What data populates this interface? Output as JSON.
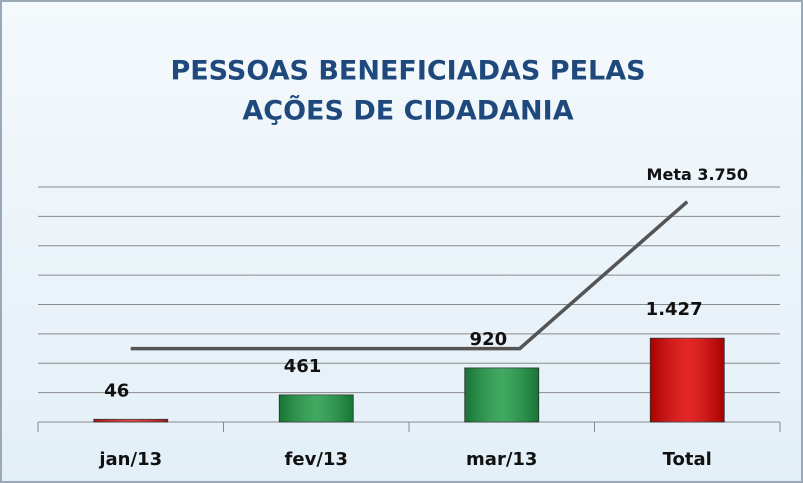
{
  "chart_data": {
    "type": "bar",
    "title": [
      "PESSOAS BENEFICIADAS PELAS",
      "AÇÕES DE CIDADANIA"
    ],
    "categories": [
      "jan/13",
      "fev/13",
      "mar/13",
      "Total"
    ],
    "values": [
      46,
      461,
      920,
      1427
    ],
    "value_labels": [
      "46",
      "461",
      "920",
      "1.427"
    ],
    "colors": [
      "#e02020",
      "#1e9a45",
      "#1e9a45",
      "#e00000"
    ],
    "target": {
      "values": [
        1250,
        1250,
        1250,
        3750
      ],
      "label": "Meta 3.750",
      "color": "#555555"
    },
    "ylim": [
      0,
      4000
    ],
    "yticks": [
      0,
      500,
      1000,
      1500,
      2000,
      2500,
      3000,
      3500,
      4000
    ],
    "grid": true
  }
}
